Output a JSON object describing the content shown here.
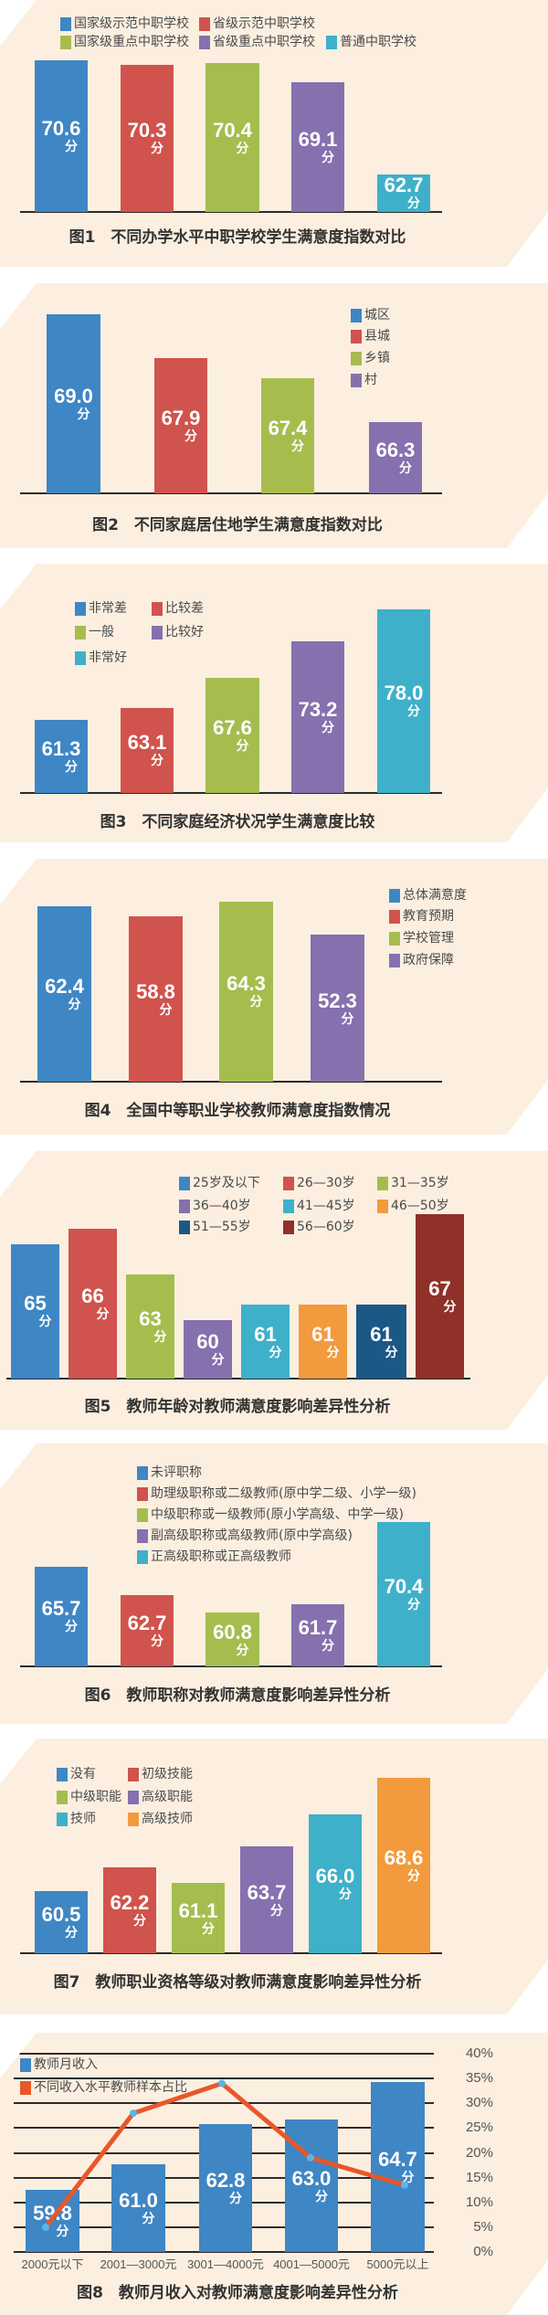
{
  "unit_label": "分",
  "colors": {
    "background": "#fcefe0",
    "blue": "#3f86c4",
    "red": "#d0534d",
    "green": "#a6bd4e",
    "purple": "#8670ae",
    "cyan": "#3fb0c9",
    "orange": "#f39a3e",
    "dark_blue": "#1c5886",
    "dark_red": "#8f3029",
    "line": "#e8572a",
    "marker": "#5bb4e8"
  },
  "chart_data": [
    {
      "type": "bar",
      "title": "图1　不同办学水平中职学校学生满意度指数对比",
      "categories": [
        "国家级示范中职学校",
        "省级示范中职学校",
        "国家级重点中职学校",
        "省级重点中职学校",
        "普通中职学校"
      ],
      "values": [
        70.6,
        70.3,
        70.4,
        69.1,
        62.7
      ],
      "value_labels": [
        "70.6",
        "70.3",
        "70.4",
        "69.1",
        "62.7"
      ],
      "colors": [
        "#3f86c4",
        "#d0534d",
        "#a6bd4e",
        "#8670ae",
        "#3fb0c9"
      ],
      "ylim": [
        60.1,
        71.5
      ],
      "grid": false,
      "legend": "top"
    },
    {
      "type": "bar",
      "title": "图2　不同家庭居住地学生满意度指数对比",
      "categories": [
        "城区",
        "县城",
        "乡镇",
        "村"
      ],
      "values": [
        69.0,
        67.9,
        67.4,
        66.3
      ],
      "value_labels": [
        "69.0",
        "67.9",
        "67.4",
        "66.3"
      ],
      "colors": [
        "#3f86c4",
        "#d0534d",
        "#a6bd4e",
        "#8670ae"
      ],
      "ylim": [
        64.5,
        69.1
      ],
      "grid": false,
      "legend": "top-right"
    },
    {
      "type": "bar",
      "title": "图3　不同家庭经济状况学生满意度比较",
      "categories": [
        "非常差",
        "比较差",
        "一般",
        "比较好",
        "非常好"
      ],
      "values": [
        61.3,
        63.1,
        67.6,
        73.2,
        78.0
      ],
      "value_labels": [
        "61.3",
        "63.1",
        "67.6",
        "73.2",
        "78.0"
      ],
      "colors": [
        "#3f86c4",
        "#d0534d",
        "#a6bd4e",
        "#8670ae",
        "#3fb0c9"
      ],
      "ylim": [
        50.3,
        79.2
      ],
      "grid": false,
      "legend": "top-left"
    },
    {
      "type": "bar",
      "title": "图4　全国中等职业学校教师满意度指数情况",
      "categories": [
        "总体满意度",
        "教育预期",
        "学校管理",
        "政府保障"
      ],
      "values": [
        62.4,
        58.8,
        64.3,
        52.3
      ],
      "value_labels": [
        "62.4",
        "58.8",
        "64.3",
        "52.3"
      ],
      "colors": [
        "#3f86c4",
        "#d0534d",
        "#a6bd4e",
        "#8670ae"
      ],
      "ylim": [
        0,
        68.4
      ],
      "grid": false,
      "legend": "right"
    },
    {
      "type": "bar",
      "title": "图5　教师年龄对教师满意度影响差异性分析",
      "categories": [
        "25岁及以下",
        "26—30岁",
        "31—35岁",
        "36—40岁",
        "41—45岁",
        "46—50岁",
        "51—55岁",
        "56—60岁"
      ],
      "values": [
        65,
        66,
        63,
        60,
        61,
        61,
        61,
        67
      ],
      "value_labels": [
        "65",
        "66",
        "63",
        "60",
        "61",
        "61",
        "61",
        "67"
      ],
      "colors": [
        "#3f86c4",
        "#d0534d",
        "#a6bd4e",
        "#8670ae",
        "#3fb0c9",
        "#f39a3e",
        "#1c5886",
        "#8f3029"
      ],
      "ylim": [
        56.1,
        67.6
      ],
      "grid": false,
      "legend": "top"
    },
    {
      "type": "bar",
      "title": "图6　教师职称对教师满意度影响差异性分析",
      "categories": [
        "未评职称",
        "助理级职称或二级教师(原中学二级、小学一级)",
        "中级职称或一级教师(原小学高级、中学一级)",
        "副高级职称或高级教师(原中学高级)",
        "正高级职称或正高级教师"
      ],
      "values": [
        65.7,
        62.7,
        60.8,
        61.7,
        70.4
      ],
      "value_labels": [
        "65.7",
        "62.7",
        "60.8",
        "61.7",
        "70.4"
      ],
      "colors": [
        "#3f86c4",
        "#d0534d",
        "#a6bd4e",
        "#8670ae",
        "#3fb0c9"
      ],
      "ylim": [
        55.1,
        71.6
      ],
      "grid": false,
      "legend": "top"
    },
    {
      "type": "bar",
      "title": "图7　教师职业资格等级对教师满意度影响差异性分析",
      "categories": [
        "没有",
        "初级技能",
        "中级职能",
        "高级职能",
        "技师",
        "高级技师"
      ],
      "values": [
        60.5,
        62.2,
        61.1,
        63.7,
        66.0,
        68.6
      ],
      "value_labels": [
        "60.5",
        "62.2",
        "61.1",
        "63.7",
        "66.0",
        "68.6"
      ],
      "colors": [
        "#3f86c4",
        "#d0534d",
        "#a6bd4e",
        "#8670ae",
        "#3fb0c9",
        "#f39a3e"
      ],
      "ylim": [
        56.1,
        69.1
      ],
      "grid": false,
      "legend": "top-left"
    },
    {
      "type": "bar+line",
      "title": "图8　教师月收入对教师满意度影响差异性分析",
      "categories": [
        "2000元以下",
        "2001—3000元",
        "3001—4000元",
        "4001—5000元",
        "5000元以上"
      ],
      "series": [
        {
          "name": "教师月收入",
          "type": "bar",
          "values": [
            59.8,
            61.0,
            62.8,
            63.0,
            64.7
          ],
          "value_labels": [
            "59.8",
            "61.0",
            "62.8",
            "63.0",
            "64.7"
          ],
          "color": "#3f86c4"
        },
        {
          "name": "不同收入水平教师样本占比",
          "type": "line",
          "axis": "right",
          "values": [
            5,
            28,
            34,
            19,
            13.5
          ],
          "color": "#e8572a"
        }
      ],
      "ylim": [
        57.0,
        66.0
      ],
      "y2_ticks": [
        "0%",
        "5%",
        "10%",
        "15%",
        "20%",
        "25%",
        "30%",
        "35%",
        "40%"
      ],
      "y2lim": [
        0,
        40
      ],
      "grid": true,
      "legend": "top-left"
    }
  ]
}
